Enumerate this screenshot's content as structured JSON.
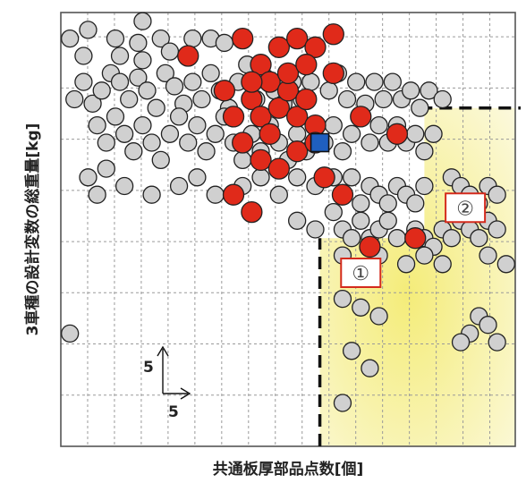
{
  "chart_data": {
    "type": "scatter",
    "title": "",
    "xlabel": "共通板厚部品点数[個]",
    "ylabel": "3車種の設計変数の総重量[kg]",
    "xlim": [
      0,
      100
    ],
    "ylim": [
      0,
      100
    ],
    "grid": true,
    "grid_step": 5.9,
    "tick_labels_shown": false,
    "scale_indicator": {
      "x_label": "5",
      "y_label": "5"
    },
    "threshold": {
      "x": 57,
      "y": 78
    },
    "regions": [
      {
        "label": "①",
        "x": 66,
        "y": 40,
        "color": "#f7f2a8"
      },
      {
        "label": "②",
        "x": 89,
        "y": 55,
        "color": "#f7f2a8"
      }
    ],
    "series": [
      {
        "color": "#d0d0d0",
        "values": [
          [
            2,
            94
          ],
          [
            6,
            96
          ],
          [
            5,
            90
          ],
          [
            12,
            94
          ],
          [
            13,
            90
          ],
          [
            17,
            93
          ],
          [
            18,
            89
          ],
          [
            22,
            94
          ],
          [
            24,
            91
          ],
          [
            29,
            94
          ],
          [
            33,
            94
          ],
          [
            36,
            93
          ],
          [
            18,
            98
          ],
          [
            3,
            80
          ],
          [
            5,
            84
          ],
          [
            7,
            79
          ],
          [
            9,
            82
          ],
          [
            11,
            86
          ],
          [
            13,
            84
          ],
          [
            15,
            80
          ],
          [
            17,
            85
          ],
          [
            19,
            82
          ],
          [
            21,
            78
          ],
          [
            23,
            86
          ],
          [
            25,
            83
          ],
          [
            27,
            79
          ],
          [
            29,
            84
          ],
          [
            31,
            80
          ],
          [
            33,
            86
          ],
          [
            35,
            82
          ],
          [
            37,
            78
          ],
          [
            39,
            84
          ],
          [
            41,
            88
          ],
          [
            43,
            80
          ],
          [
            45,
            85
          ],
          [
            47,
            82
          ],
          [
            49,
            79
          ],
          [
            51,
            84
          ],
          [
            53,
            80
          ],
          [
            55,
            84
          ],
          [
            59,
            82
          ],
          [
            61,
            86
          ],
          [
            63,
            80
          ],
          [
            65,
            84
          ],
          [
            67,
            79
          ],
          [
            69,
            84
          ],
          [
            71,
            80
          ],
          [
            73,
            84
          ],
          [
            75,
            80
          ],
          [
            77,
            82
          ],
          [
            79,
            78
          ],
          [
            81,
            82
          ],
          [
            84,
            80
          ],
          [
            8,
            74
          ],
          [
            10,
            70
          ],
          [
            12,
            76
          ],
          [
            14,
            72
          ],
          [
            16,
            68
          ],
          [
            18,
            74
          ],
          [
            20,
            70
          ],
          [
            22,
            66
          ],
          [
            24,
            72
          ],
          [
            26,
            76
          ],
          [
            28,
            70
          ],
          [
            30,
            74
          ],
          [
            32,
            68
          ],
          [
            34,
            72
          ],
          [
            36,
            76
          ],
          [
            38,
            70
          ],
          [
            40,
            66
          ],
          [
            42,
            72
          ],
          [
            44,
            68
          ],
          [
            46,
            74
          ],
          [
            48,
            70
          ],
          [
            50,
            66
          ],
          [
            52,
            72
          ],
          [
            54,
            68
          ],
          [
            58,
            70
          ],
          [
            60,
            74
          ],
          [
            62,
            68
          ],
          [
            64,
            72
          ],
          [
            66,
            76
          ],
          [
            68,
            70
          ],
          [
            70,
            74
          ],
          [
            72,
            70
          ],
          [
            74,
            74
          ],
          [
            76,
            70
          ],
          [
            78,
            72
          ],
          [
            80,
            68
          ],
          [
            82,
            72
          ],
          [
            6,
            62
          ],
          [
            8,
            58
          ],
          [
            10,
            64
          ],
          [
            14,
            60
          ],
          [
            20,
            58
          ],
          [
            26,
            60
          ],
          [
            30,
            62
          ],
          [
            34,
            58
          ],
          [
            40,
            60
          ],
          [
            44,
            62
          ],
          [
            48,
            58
          ],
          [
            52,
            62
          ],
          [
            56,
            60
          ],
          [
            60,
            62
          ],
          [
            62,
            58
          ],
          [
            64,
            62
          ],
          [
            66,
            56
          ],
          [
            68,
            60
          ],
          [
            70,
            58
          ],
          [
            72,
            56
          ],
          [
            74,
            60
          ],
          [
            76,
            58
          ],
          [
            78,
            56
          ],
          [
            80,
            60
          ],
          [
            86,
            62
          ],
          [
            88,
            60
          ],
          [
            90,
            58
          ],
          [
            92,
            56
          ],
          [
            94,
            60
          ],
          [
            96,
            58
          ],
          [
            52,
            52
          ],
          [
            56,
            50
          ],
          [
            60,
            54
          ],
          [
            62,
            50
          ],
          [
            64,
            48
          ],
          [
            66,
            52
          ],
          [
            68,
            48
          ],
          [
            70,
            50
          ],
          [
            72,
            52
          ],
          [
            74,
            48
          ],
          [
            78,
            50
          ],
          [
            80,
            48
          ],
          [
            82,
            46
          ],
          [
            84,
            50
          ],
          [
            86,
            48
          ],
          [
            88,
            52
          ],
          [
            90,
            50
          ],
          [
            92,
            48
          ],
          [
            94,
            52
          ],
          [
            96,
            50
          ],
          [
            62,
            44
          ],
          [
            70,
            44
          ],
          [
            76,
            42
          ],
          [
            80,
            44
          ],
          [
            84,
            42
          ],
          [
            94,
            44
          ],
          [
            98,
            42
          ],
          [
            62,
            34
          ],
          [
            66,
            32
          ],
          [
            70,
            30
          ],
          [
            64,
            22
          ],
          [
            68,
            18
          ],
          [
            62,
            10
          ],
          [
            2,
            26
          ],
          [
            90,
            26
          ],
          [
            92,
            30
          ],
          [
            88,
            24
          ],
          [
            94,
            28
          ],
          [
            96,
            24
          ]
        ]
      },
      {
        "color": "#e02a1a",
        "values": [
          [
            28,
            90
          ],
          [
            40,
            94
          ],
          [
            44,
            88
          ],
          [
            48,
            92
          ],
          [
            52,
            94
          ],
          [
            56,
            92
          ],
          [
            60,
            95
          ],
          [
            36,
            82
          ],
          [
            38,
            76
          ],
          [
            40,
            70
          ],
          [
            42,
            80
          ],
          [
            44,
            76
          ],
          [
            46,
            84
          ],
          [
            48,
            78
          ],
          [
            50,
            82
          ],
          [
            52,
            76
          ],
          [
            54,
            80
          ],
          [
            56,
            74
          ],
          [
            44,
            66
          ],
          [
            48,
            64
          ],
          [
            52,
            68
          ],
          [
            56,
            70
          ],
          [
            58,
            62
          ],
          [
            38,
            58
          ],
          [
            42,
            54
          ],
          [
            62,
            58
          ],
          [
            66,
            76
          ],
          [
            74,
            72
          ],
          [
            78,
            48
          ],
          [
            68,
            46
          ],
          [
            50,
            86
          ],
          [
            46,
            72
          ],
          [
            54,
            88
          ],
          [
            60,
            86
          ],
          [
            42,
            84
          ]
        ]
      },
      {
        "color": "#1f5fbf",
        "values": [
          [
            57,
            70
          ]
        ]
      }
    ]
  }
}
